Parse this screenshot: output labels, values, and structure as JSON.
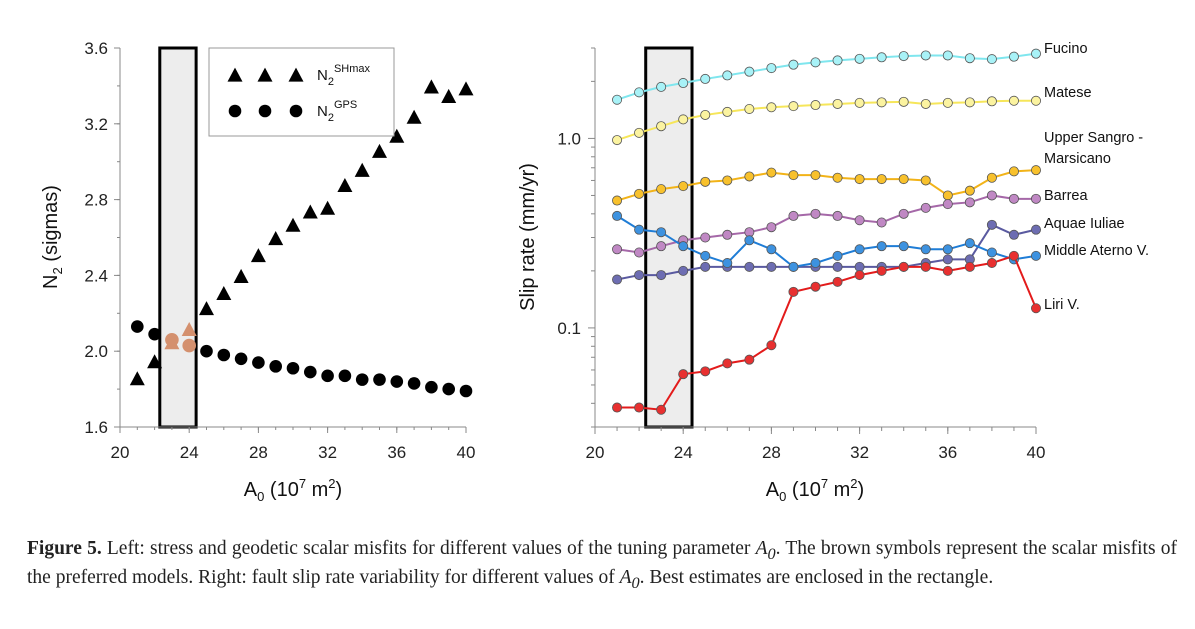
{
  "caption": {
    "label": "Figure 5.",
    "part1": " Left: stress and geodetic scalar misfits for different values of the tuning parameter ",
    "var_sym": "A",
    "var_sub": "0",
    "part2": ". The brown symbols represent the scalar misfits of the preferred models. Right: fault slip rate variability for different values of ",
    "part3": ". Best estimates are enclosed in the rectangle."
  },
  "chart_data": [
    {
      "type": "scatter",
      "xlabel": "A0 (10^7 m^2)",
      "ylabel": "N2 (sigmas)",
      "xlim": [
        20,
        40
      ],
      "ylim": [
        1.6,
        3.6
      ],
      "xticks": [
        "20",
        "24",
        "28",
        "32",
        "36",
        "40"
      ],
      "yticks": [
        "1.6",
        "2.0",
        "2.4",
        "2.8",
        "3.2",
        "3.6"
      ],
      "legend": [
        {
          "base": "N",
          "sub": "2",
          "sup": "SHmax",
          "marker": "triangle"
        },
        {
          "base": "N",
          "sub": "2",
          "sup": "GPS",
          "marker": "circle"
        }
      ],
      "legend_position": "top-right",
      "highlight_range": [
        22.3,
        24.4
      ],
      "series": [
        {
          "marker": "triangle",
          "color": "#000000",
          "x": [
            21,
            22,
            25,
            26,
            27,
            28,
            29,
            30,
            31,
            32,
            33,
            34,
            35,
            36,
            37,
            38,
            39,
            40
          ],
          "y": [
            1.85,
            1.94,
            2.22,
            2.3,
            2.39,
            2.5,
            2.59,
            2.66,
            2.73,
            2.75,
            2.87,
            2.95,
            3.05,
            3.13,
            3.23,
            3.39,
            3.34,
            3.38
          ]
        },
        {
          "marker": "circle",
          "color": "#000000",
          "x": [
            21,
            22,
            25,
            26,
            27,
            28,
            29,
            30,
            31,
            32,
            33,
            34,
            35,
            36,
            37,
            38,
            39,
            40
          ],
          "y": [
            2.13,
            2.09,
            2.0,
            1.98,
            1.96,
            1.94,
            1.92,
            1.91,
            1.89,
            1.87,
            1.87,
            1.85,
            1.85,
            1.84,
            1.83,
            1.81,
            1.8,
            1.79
          ]
        }
      ],
      "preferred": {
        "color": "#d4906e",
        "triangle": {
          "x": [
            23,
            24
          ],
          "y": [
            2.04,
            2.11
          ]
        },
        "circle": {
          "x": [
            23,
            24
          ],
          "y": [
            2.06,
            2.03
          ]
        }
      }
    },
    {
      "type": "line",
      "xlabel": "A0 (10^7 m^2)",
      "ylabel": "Slip rate (mm/yr)",
      "ylog": true,
      "xlim": [
        20,
        40
      ],
      "ylim": [
        0.03,
        3.0
      ],
      "xticks": [
        "20",
        "24",
        "28",
        "32",
        "36",
        "40"
      ],
      "yticks": [
        {
          "v": 1.0,
          "label": "1.0"
        },
        {
          "v": 0.1,
          "label": "0.1"
        }
      ],
      "highlight_range": [
        22.3,
        24.4
      ],
      "x": [
        21,
        22,
        23,
        24,
        25,
        26,
        27,
        28,
        29,
        30,
        31,
        32,
        33,
        34,
        35,
        36,
        37,
        38,
        39,
        40
      ],
      "series": [
        {
          "name": "Fucino",
          "line": "#7fe6ee",
          "fill": "#a8f2f7",
          "values": [
            1.6,
            1.75,
            1.87,
            1.96,
            2.06,
            2.15,
            2.25,
            2.35,
            2.45,
            2.52,
            2.58,
            2.63,
            2.68,
            2.72,
            2.74,
            2.74,
            2.65,
            2.62,
            2.7,
            2.8
          ]
        },
        {
          "name": "Matese",
          "line": "#f6e65a",
          "fill": "#fbf3a0",
          "values": [
            0.98,
            1.07,
            1.16,
            1.26,
            1.33,
            1.38,
            1.43,
            1.46,
            1.48,
            1.5,
            1.52,
            1.54,
            1.55,
            1.56,
            1.52,
            1.54,
            1.55,
            1.57,
            1.58,
            1.58
          ]
        },
        {
          "name": "Upper Sangro - Marsicano",
          "line": "#f2b318",
          "fill": "#f8c12c",
          "values": [
            0.47,
            0.51,
            0.54,
            0.56,
            0.59,
            0.6,
            0.63,
            0.66,
            0.64,
            0.64,
            0.62,
            0.61,
            0.61,
            0.61,
            0.6,
            0.5,
            0.53,
            0.62,
            0.67,
            0.68
          ]
        },
        {
          "name": "Barrea",
          "line": "#a568a8",
          "fill": "#c088c4",
          "values": [
            0.26,
            0.25,
            0.27,
            0.29,
            0.3,
            0.31,
            0.32,
            0.34,
            0.39,
            0.4,
            0.39,
            0.37,
            0.36,
            0.4,
            0.43,
            0.45,
            0.46,
            0.5,
            0.48,
            0.48
          ]
        },
        {
          "name": "Aquae Iuliae",
          "line": "#5a5aa0",
          "fill": "#6d6db2",
          "values": [
            0.18,
            0.19,
            0.19,
            0.2,
            0.21,
            0.21,
            0.21,
            0.21,
            0.21,
            0.21,
            0.21,
            0.21,
            0.21,
            0.21,
            0.22,
            0.23,
            0.23,
            0.35,
            0.31,
            0.33
          ]
        },
        {
          "name": "Middle Aterno V.",
          "line": "#1f7dd6",
          "fill": "#3d92e0",
          "values": [
            0.39,
            0.33,
            0.32,
            0.27,
            0.24,
            0.22,
            0.29,
            0.26,
            0.21,
            0.22,
            0.24,
            0.26,
            0.27,
            0.27,
            0.26,
            0.26,
            0.28,
            0.25,
            0.23,
            0.24
          ]
        },
        {
          "name": "Liri V.",
          "line": "#e31b1b",
          "fill": "#e83030",
          "values": [
            0.038,
            0.038,
            0.037,
            0.057,
            0.059,
            0.065,
            0.068,
            0.081,
            0.155,
            0.165,
            0.175,
            0.19,
            0.2,
            0.21,
            0.21,
            0.2,
            0.21,
            0.22,
            0.24,
            0.127
          ]
        }
      ]
    }
  ]
}
